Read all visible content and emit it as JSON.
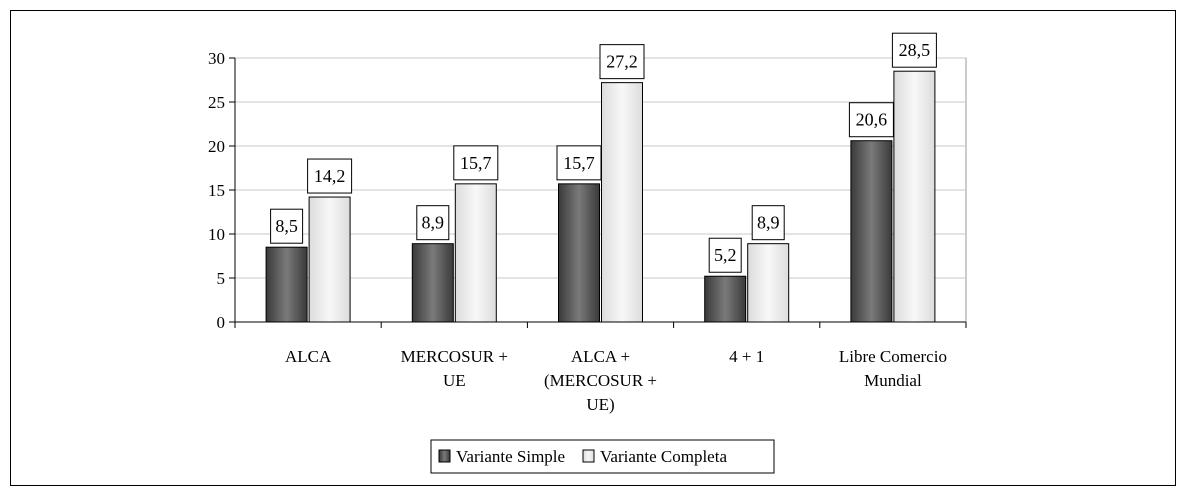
{
  "chart_data": {
    "type": "bar",
    "title": "",
    "xlabel": "",
    "ylabel": "",
    "categories": [
      [
        "ALCA"
      ],
      [
        "MERCOSUR +",
        "UE"
      ],
      [
        "ALCA +",
        "(MERCOSUR +",
        "UE)"
      ],
      [
        "4 + 1"
      ],
      [
        "Libre Comercio",
        "Mundial"
      ]
    ],
    "series": [
      {
        "name": "Variante Simple",
        "values": [
          8.5,
          8.9,
          15.7,
          5.2,
          20.6
        ],
        "labels": [
          "8,5",
          "8,9",
          "15,7",
          "5,2",
          "20,6"
        ]
      },
      {
        "name": "Variante Completa",
        "values": [
          14.2,
          15.7,
          27.2,
          8.9,
          28.5
        ],
        "labels": [
          "14,2",
          "15,7",
          "27,2",
          "8,9",
          "28,5"
        ]
      }
    ],
    "ylim": [
      0,
      30
    ],
    "yticks": [
      0,
      5,
      10,
      15,
      20,
      25,
      30
    ],
    "grid": true,
    "legend_position": "bottom",
    "colors": {
      "simple": "#555555",
      "completa": "#eeeeee",
      "grid": "#c8c8c8"
    }
  }
}
